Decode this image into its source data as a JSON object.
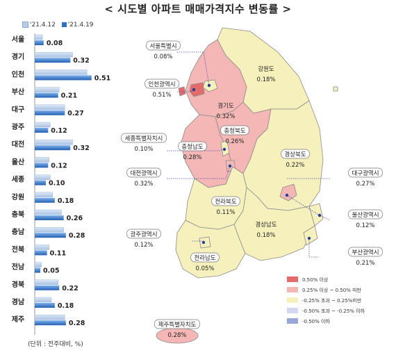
{
  "title": "< 시도별 아파트 매매가격지수 변동률 >",
  "legend_series": [
    "'21.4.12",
    "'21.4.19"
  ],
  "unit_note": "(단위 : 전주대비, %)",
  "colors": {
    "prev_bar": "#b9cde6",
    "curr_bar": "#2e6fbf",
    "curr_bar_light": "#6fa3e0",
    "map_red": "#e56b6b",
    "map_pink": "#f4b7b6",
    "map_yellow": "#f6f0bd",
    "map_lavender": "#d4d7ef",
    "map_blue": "#9aa6d8"
  },
  "chart_data": {
    "type": "bar",
    "orientation": "horizontal",
    "categories": [
      "서울",
      "경기",
      "인천",
      "부산",
      "대구",
      "광주",
      "대전",
      "울산",
      "세종",
      "강원",
      "충북",
      "충남",
      "전북",
      "전남",
      "경북",
      "경남",
      "제주"
    ],
    "series": [
      {
        "name": "'21.4.12",
        "values": [
          0.07,
          0.34,
          0.47,
          0.22,
          0.27,
          0.14,
          0.34,
          0.13,
          0.14,
          0.16,
          0.24,
          0.26,
          0.13,
          0.06,
          0.21,
          0.15,
          0.27
        ]
      },
      {
        "name": "'21.4.19",
        "values": [
          0.08,
          0.32,
          0.51,
          0.21,
          0.27,
          0.12,
          0.32,
          0.12,
          0.1,
          0.18,
          0.26,
          0.28,
          0.11,
          0.05,
          0.22,
          0.18,
          0.28
        ]
      }
    ],
    "xlim": [
      0,
      0.55
    ]
  },
  "map": {
    "legend": [
      {
        "label": "0.50% 이상",
        "color": "#e56b6b"
      },
      {
        "label": "0.25% 이상 ~ 0.50% 미만",
        "color": "#f4b7b6"
      },
      {
        "label": "-0.25% 초과 ~ 0.25%미만",
        "color": "#f6f0bd"
      },
      {
        "label": "-0.50% 초과 ~ -0.25% 이하",
        "color": "#d4d7ef"
      },
      {
        "label": "-0.50% 이하",
        "color": "#9aa6d8"
      }
    ],
    "labels": [
      {
        "name": "서울특별시",
        "value": "0.08%"
      },
      {
        "name": "인천광역시",
        "value": "0.51%"
      },
      {
        "name": "경기도",
        "value": "0.32%"
      },
      {
        "name": "강원도",
        "value": "0.18%"
      },
      {
        "name": "충청북도",
        "value": "0.26%"
      },
      {
        "name": "세종특별자치시",
        "value": "0.10%"
      },
      {
        "name": "충청남도",
        "value": "0.28%"
      },
      {
        "name": "대전광역시",
        "value": "0.32%"
      },
      {
        "name": "경상북도",
        "value": "0.22%"
      },
      {
        "name": "대구광역시",
        "value": "0.27%"
      },
      {
        "name": "전라북도",
        "value": "0.11%"
      },
      {
        "name": "울산광역시",
        "value": "0.12%"
      },
      {
        "name": "광주광역시",
        "value": "0.12%"
      },
      {
        "name": "경상남도",
        "value": "0.18%"
      },
      {
        "name": "부산광역시",
        "value": "0.21%"
      },
      {
        "name": "전라남도",
        "value": "0.05%"
      },
      {
        "name": "제주특별자치도",
        "value": "0.28%"
      }
    ]
  }
}
